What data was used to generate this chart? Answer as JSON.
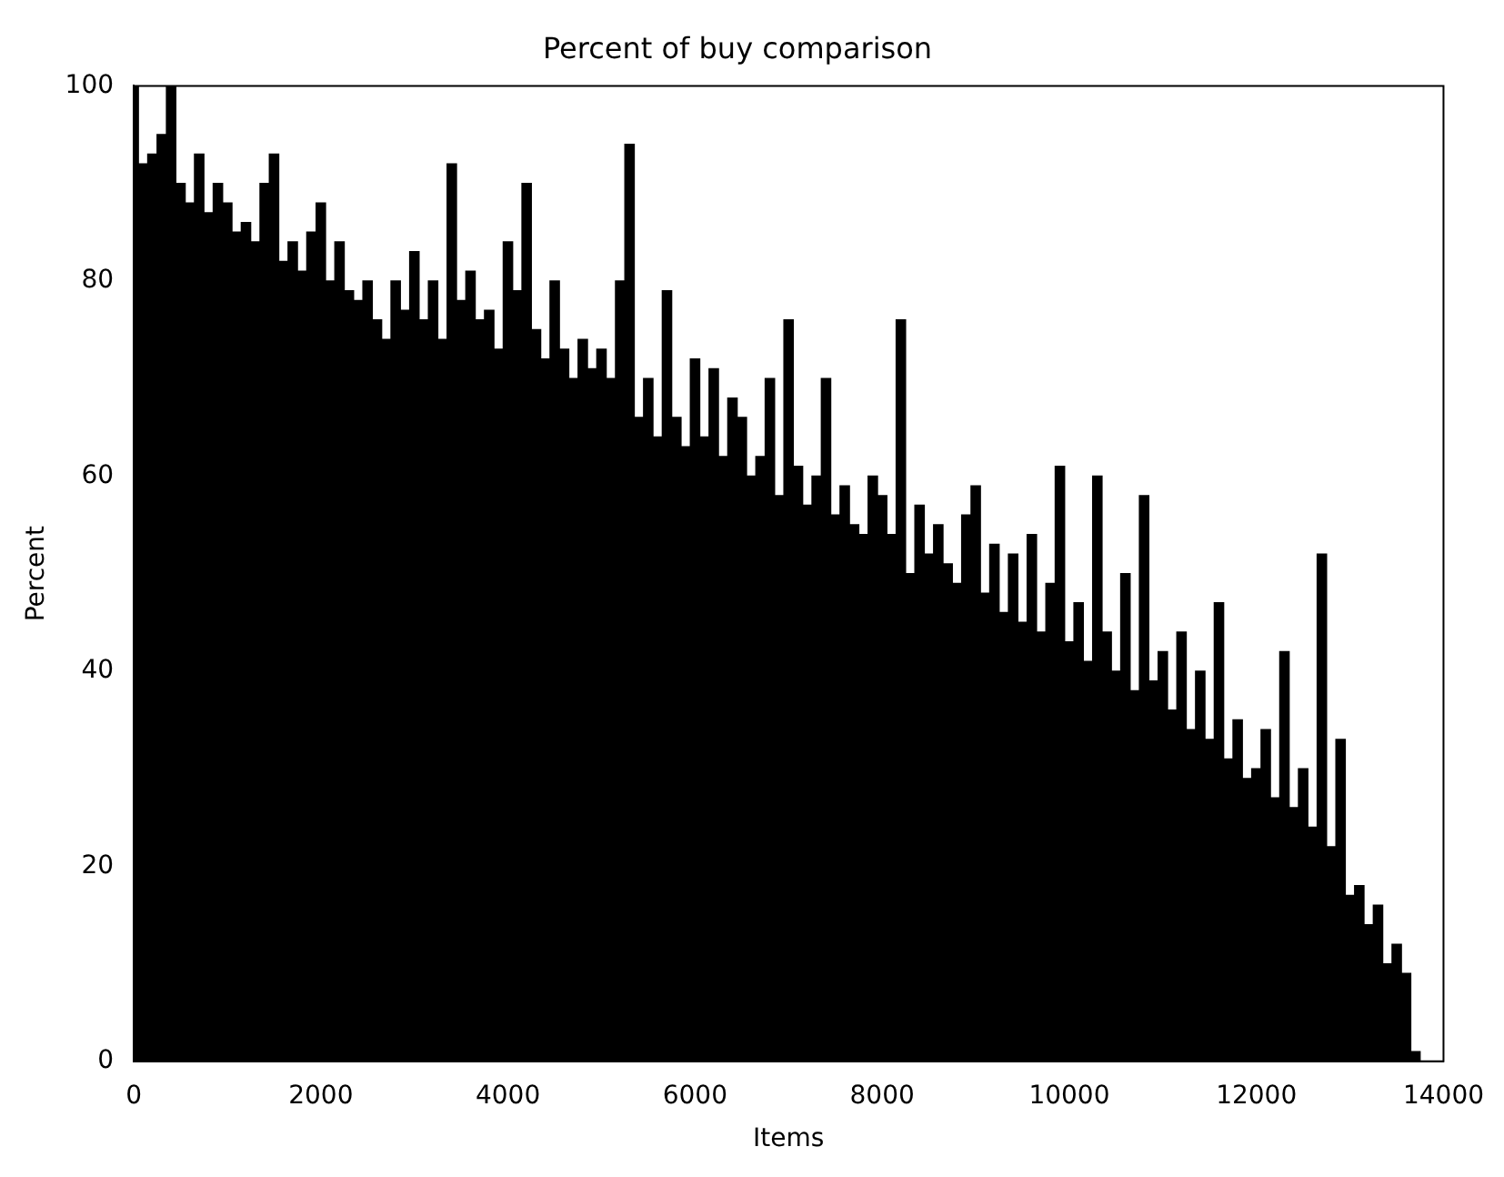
{
  "chart_data": {
    "type": "bar",
    "title": "Percent of buy comparison",
    "xlabel": "Items",
    "ylabel": "Percent",
    "x": [
      0,
      100,
      200,
      300,
      400,
      500,
      600,
      700,
      800,
      900,
      1000,
      1100,
      1200,
      1300,
      1400,
      1500,
      1600,
      1700,
      1800,
      1900,
      2000,
      2100,
      2200,
      2300,
      2400,
      2500,
      2600,
      2700,
      2800,
      2900,
      3000,
      3100,
      3200,
      3300,
      3400,
      3500,
      3600,
      3700,
      3800,
      3900,
      4000,
      4100,
      4200,
      4300,
      4400,
      4500,
      4600,
      4700,
      4800,
      4900,
      5000,
      5100,
      5200,
      5300,
      5400,
      5500,
      5600,
      5700,
      5800,
      5900,
      6000,
      6100,
      6200,
      6300,
      6400,
      6500,
      6600,
      6700,
      6800,
      6900,
      7000,
      7100,
      7200,
      7300,
      7400,
      7500,
      7600,
      7700,
      7800,
      7900,
      8000,
      8100,
      8200,
      8300,
      8400,
      8500,
      8600,
      8700,
      8800,
      8900,
      9000,
      9100,
      9200,
      9300,
      9400,
      9500,
      9600,
      9700,
      9800,
      9900,
      10000,
      10100,
      10200,
      10300,
      10400,
      10500,
      10600,
      10700,
      10800,
      10900,
      11000,
      11100,
      11200,
      11300,
      11400,
      11500,
      11600,
      11700,
      11800,
      11900,
      12000,
      12100,
      12200,
      12300,
      12400,
      12500,
      12600,
      12700,
      12800,
      12900,
      13000,
      13100,
      13200,
      13300,
      13400,
      13500,
      13600,
      13700
    ],
    "values": [
      100,
      92,
      93,
      95,
      100,
      90,
      88,
      93,
      87,
      90,
      88,
      85,
      86,
      84,
      90,
      93,
      82,
      84,
      81,
      85,
      88,
      80,
      84,
      79,
      78,
      80,
      76,
      74,
      80,
      77,
      83,
      76,
      80,
      74,
      92,
      78,
      81,
      76,
      77,
      73,
      84,
      79,
      90,
      75,
      72,
      80,
      73,
      70,
      74,
      71,
      73,
      70,
      80,
      94,
      66,
      70,
      64,
      79,
      66,
      63,
      72,
      64,
      71,
      62,
      68,
      66,
      60,
      62,
      70,
      58,
      76,
      61,
      57,
      60,
      70,
      56,
      59,
      55,
      54,
      60,
      58,
      54,
      76,
      50,
      57,
      52,
      55,
      51,
      49,
      56,
      59,
      48,
      53,
      46,
      52,
      45,
      54,
      44,
      49,
      61,
      43,
      47,
      41,
      60,
      44,
      40,
      50,
      38,
      58,
      39,
      42,
      36,
      44,
      34,
      40,
      33,
      47,
      31,
      35,
      29,
      30,
      34,
      27,
      42,
      26,
      30,
      24,
      52,
      22,
      33,
      17,
      18,
      14,
      16,
      10,
      12,
      9,
      1
    ],
    "color": "#000000",
    "xlim": [
      0,
      14000
    ],
    "xticks": [
      0,
      2000,
      4000,
      6000,
      8000,
      10000,
      12000,
      14000
    ],
    "ylim": [
      0,
      100
    ],
    "yticks": [
      0,
      20,
      40,
      60,
      80,
      100
    ],
    "grid": false,
    "legend": false
  }
}
